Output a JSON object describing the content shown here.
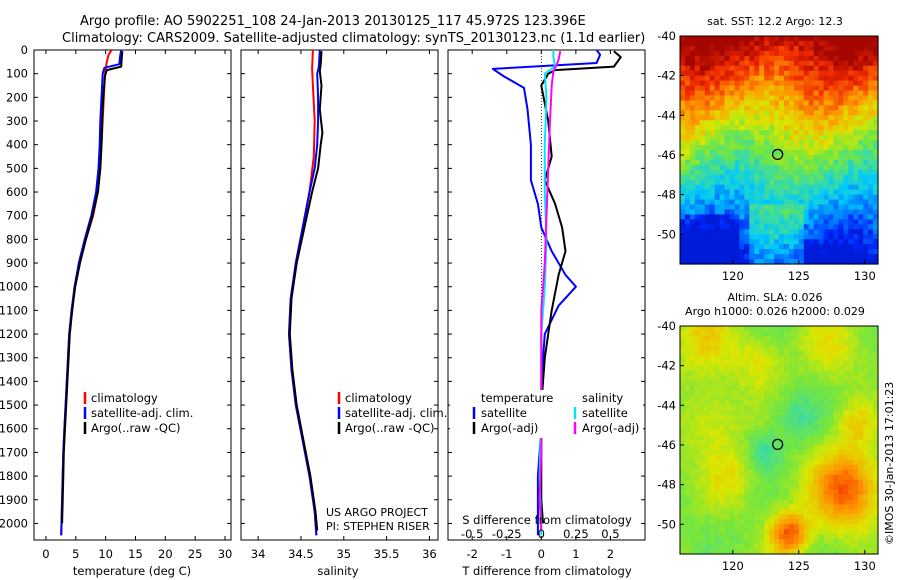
{
  "header": {
    "line1": "Argo profile: AO 5902251_108 24-Jan-2013 20130125_117 45.972S 123.396E",
    "line2": "Climatology: CARS2009. Satellite-adjusted climatology: synTS_20130123.nc (1.1d earlier)"
  },
  "colors": {
    "climatology": "#ff0000",
    "satellite": "#0000ff",
    "argo": "#000000",
    "sal_sat": "#00e5ff",
    "sal_argo": "#ff00ff"
  },
  "depth_axis": {
    "ticks": [
      0,
      100,
      200,
      300,
      400,
      500,
      600,
      700,
      800,
      900,
      1000,
      1100,
      1200,
      1300,
      1400,
      1500,
      1600,
      1700,
      1800,
      1900,
      2000
    ],
    "ylim": [
      0,
      2070
    ]
  },
  "chart_data": [
    {
      "id": "temperature",
      "type": "line",
      "xlabel": "temperature (deg C)",
      "xlim": [
        -2,
        31
      ],
      "xticks": [
        0,
        5,
        10,
        15,
        20,
        25,
        30
      ],
      "ylim": [
        0,
        2070
      ],
      "legend": [
        "climatology",
        "satellite-adj. clim.",
        "Argo(..raw -QC)"
      ],
      "series": [
        {
          "name": "climatology",
          "color": "#ff0000",
          "points": [
            [
              11,
              0
            ],
            [
              10.5,
              20
            ],
            [
              10.2,
              50
            ],
            [
              9.9,
              100
            ],
            [
              9.7,
              200
            ],
            [
              9.5,
              300
            ],
            [
              9.3,
              400
            ],
            [
              9.1,
              500
            ],
            [
              8.7,
              600
            ],
            [
              7.9,
              700
            ],
            [
              6.7,
              800
            ],
            [
              5.6,
              900
            ],
            [
              4.8,
              1000
            ],
            [
              4.3,
              1100
            ],
            [
              3.9,
              1200
            ],
            [
              3.7,
              1300
            ],
            [
              3.5,
              1400
            ],
            [
              3.3,
              1500
            ],
            [
              3.1,
              1600
            ],
            [
              2.9,
              1700
            ],
            [
              2.8,
              1800
            ],
            [
              2.7,
              1900
            ],
            [
              2.6,
              2000
            ],
            [
              2.55,
              2050
            ]
          ]
        },
        {
          "name": "satellite-adj. clim.",
          "color": "#0000ff",
          "points": [
            [
              12.6,
              0
            ],
            [
              12.4,
              30
            ],
            [
              12.3,
              60
            ],
            [
              9.8,
              75
            ],
            [
              9.5,
              100
            ],
            [
              9.3,
              200
            ],
            [
              9.1,
              300
            ],
            [
              9.0,
              400
            ],
            [
              8.8,
              500
            ],
            [
              8.4,
              600
            ],
            [
              7.6,
              700
            ],
            [
              6.5,
              800
            ],
            [
              5.5,
              900
            ],
            [
              4.8,
              1000
            ],
            [
              4.3,
              1100
            ],
            [
              3.9,
              1200
            ],
            [
              3.7,
              1300
            ],
            [
              3.5,
              1400
            ],
            [
              3.3,
              1500
            ],
            [
              3.1,
              1600
            ],
            [
              2.9,
              1700
            ],
            [
              2.8,
              1800
            ],
            [
              2.7,
              1900
            ],
            [
              2.6,
              2000
            ],
            [
              2.55,
              2050
            ]
          ]
        },
        {
          "name": "Argo(..raw -QC)",
          "color": "#000000",
          "points": [
            [
              12.8,
              5
            ],
            [
              12.7,
              30
            ],
            [
              12.6,
              70
            ],
            [
              10.2,
              85
            ],
            [
              9.9,
              110
            ],
            [
              9.6,
              200
            ],
            [
              9.4,
              300
            ],
            [
              9.3,
              400
            ],
            [
              9.1,
              500
            ],
            [
              8.7,
              600
            ],
            [
              7.8,
              700
            ],
            [
              6.7,
              800
            ],
            [
              5.7,
              900
            ],
            [
              4.9,
              1000
            ],
            [
              4.4,
              1100
            ],
            [
              4.0,
              1200
            ],
            [
              3.8,
              1300
            ],
            [
              3.6,
              1400
            ],
            [
              3.4,
              1500
            ],
            [
              3.2,
              1600
            ],
            [
              3.0,
              1700
            ],
            [
              2.9,
              1800
            ],
            [
              2.8,
              1900
            ],
            [
              2.7,
              2000
            ]
          ]
        }
      ]
    },
    {
      "id": "salinity",
      "type": "line",
      "xlabel": "salinity",
      "xlim": [
        33.8,
        36.1
      ],
      "xticks": [
        34,
        34.5,
        35,
        35.5,
        36
      ],
      "ylim": [
        0,
        2070
      ],
      "legend": [
        "climatology",
        "satellite-adj. clim.",
        "Argo(..raw -QC)"
      ],
      "series": [
        {
          "name": "climatology",
          "color": "#ff0000",
          "points": [
            [
              34.64,
              0
            ],
            [
              34.63,
              80
            ],
            [
              34.64,
              150
            ],
            [
              34.66,
              300
            ],
            [
              34.65,
              450
            ],
            [
              34.6,
              600
            ],
            [
              34.52,
              750
            ],
            [
              34.44,
              900
            ],
            [
              34.38,
              1050
            ],
            [
              34.36,
              1200
            ],
            [
              34.39,
              1350
            ],
            [
              34.44,
              1500
            ],
            [
              34.52,
              1650
            ],
            [
              34.6,
              1800
            ],
            [
              34.66,
              1950
            ],
            [
              34.68,
              2050
            ]
          ]
        },
        {
          "name": "satellite-adj. clim.",
          "color": "#0000ff",
          "points": [
            [
              34.72,
              0
            ],
            [
              34.71,
              70
            ],
            [
              34.69,
              100
            ],
            [
              34.7,
              200
            ],
            [
              34.7,
              300
            ],
            [
              34.69,
              400
            ],
            [
              34.66,
              500
            ],
            [
              34.6,
              600
            ],
            [
              34.52,
              750
            ],
            [
              34.44,
              900
            ],
            [
              34.38,
              1050
            ],
            [
              34.36,
              1200
            ],
            [
              34.39,
              1350
            ],
            [
              34.44,
              1500
            ],
            [
              34.52,
              1650
            ],
            [
              34.6,
              1800
            ],
            [
              34.66,
              1950
            ],
            [
              34.68,
              2050
            ]
          ]
        },
        {
          "name": "Argo(..raw -QC)",
          "color": "#000000",
          "points": [
            [
              34.74,
              5
            ],
            [
              34.73,
              60
            ],
            [
              34.72,
              90
            ],
            [
              34.74,
              150
            ],
            [
              34.72,
              250
            ],
            [
              34.75,
              350
            ],
            [
              34.73,
              400
            ],
            [
              34.7,
              500
            ],
            [
              34.63,
              600
            ],
            [
              34.54,
              750
            ],
            [
              34.45,
              900
            ],
            [
              34.39,
              1050
            ],
            [
              34.37,
              1200
            ],
            [
              34.4,
              1350
            ],
            [
              34.45,
              1500
            ],
            [
              34.53,
              1650
            ],
            [
              34.61,
              1800
            ],
            [
              34.67,
              1950
            ],
            [
              34.69,
              2030
            ]
          ]
        }
      ],
      "annotation": [
        "US ARGO PROJECT",
        "PI: STEPHEN RISER"
      ]
    },
    {
      "id": "difference",
      "type": "line",
      "xlabel": "T difference from climatology",
      "xlabel_top": "S difference from climatology",
      "xlim": [
        -2.7,
        3.0
      ],
      "xticks": [
        -2,
        -1,
        0,
        1,
        2
      ],
      "xticks_top": [
        -0.5,
        -0.25,
        0,
        0.25,
        0.5
      ],
      "ylim": [
        0,
        2070
      ],
      "legend_temperature": {
        "title": "temperature",
        "items": [
          "satellite",
          "Argo(-adj)"
        ]
      },
      "legend_salinity": {
        "title": "salinity",
        "items": [
          "satellite",
          "Argo(-adj)"
        ]
      },
      "series": [
        {
          "name": "temperature satellite",
          "color": "#0000ff",
          "points": [
            [
              1.6,
              0
            ],
            [
              1.7,
              20
            ],
            [
              1.6,
              55
            ],
            [
              -1.4,
              80
            ],
            [
              -1.1,
              110
            ],
            [
              -0.5,
              160
            ],
            [
              -0.4,
              250
            ],
            [
              -0.3,
              400
            ],
            [
              -0.3,
              550
            ],
            [
              -0.1,
              650
            ],
            [
              0,
              750
            ],
            [
              0.3,
              850
            ],
            [
              0.7,
              950
            ],
            [
              1.0,
              1000
            ],
            [
              0.5,
              1080
            ],
            [
              0.1,
              1200
            ],
            [
              0,
              1400
            ],
            [
              0,
              1600
            ],
            [
              -0.1,
              1800
            ],
            [
              -0.1,
              2000
            ],
            [
              -0.1,
              2050
            ]
          ]
        },
        {
          "name": "temperature Argo(-adj)",
          "color": "#000000",
          "points": [
            [
              2.1,
              5
            ],
            [
              2.3,
              30
            ],
            [
              2.1,
              70
            ],
            [
              0.4,
              85
            ],
            [
              0.2,
              100
            ],
            [
              0,
              150
            ],
            [
              0.2,
              300
            ],
            [
              0.3,
              450
            ],
            [
              0.1,
              550
            ],
            [
              0.4,
              650
            ],
            [
              0.6,
              750
            ],
            [
              0.7,
              850
            ],
            [
              0.5,
              950
            ],
            [
              0.3,
              1100
            ],
            [
              0.1,
              1300
            ],
            [
              0,
              1500
            ],
            [
              0,
              1700
            ],
            [
              0,
              1900
            ],
            [
              0.05,
              2000
            ]
          ]
        },
        {
          "name": "salinity satellite",
          "color": "#00e5ff",
          "points": [
            [
              0.35,
              0
            ],
            [
              0.35,
              30
            ],
            [
              0.4,
              70
            ],
            [
              0.1,
              100
            ],
            [
              0.15,
              200
            ],
            [
              0.1,
              400
            ],
            [
              0.1,
              600
            ],
            [
              0.15,
              800
            ],
            [
              0.1,
              1000
            ],
            [
              0,
              1200
            ],
            [
              0,
              1500
            ],
            [
              -0.05,
              1800
            ],
            [
              0,
              2050
            ]
          ]
        },
        {
          "name": "salinity Argo(-adj)",
          "color": "#ff00ff",
          "points": [
            [
              0.55,
              5
            ],
            [
              0.5,
              40
            ],
            [
              0.45,
              60
            ],
            [
              0.35,
              90
            ],
            [
              0.3,
              150
            ],
            [
              0.25,
              300
            ],
            [
              0.2,
              500
            ],
            [
              0.15,
              700
            ],
            [
              0.1,
              900
            ],
            [
              0,
              1100
            ],
            [
              0,
              1400
            ],
            [
              0,
              1700
            ],
            [
              -0.05,
              1900
            ],
            [
              0,
              2030
            ]
          ]
        }
      ]
    },
    {
      "id": "sst_map",
      "type": "heatmap",
      "title": "sat. SST: 12.2  Argo: 12.3",
      "xlim": [
        116,
        131
      ],
      "ylim": [
        -51.5,
        -40
      ],
      "xticks": [
        120,
        125,
        130
      ],
      "yticks": [
        -40,
        -42,
        -44,
        -46,
        -48,
        -50
      ],
      "marker": {
        "lon": 123.396,
        "lat": -45.972
      }
    },
    {
      "id": "sla_map",
      "type": "heatmap",
      "title": [
        "Altim. SLA: 0.026",
        "Argo h1000: 0.026 h2000: 0.029"
      ],
      "xlim": [
        116,
        131
      ],
      "ylim": [
        -51.5,
        -40
      ],
      "xticks": [
        120,
        125,
        130
      ],
      "yticks": [
        -40,
        -42,
        -44,
        -46,
        -48,
        -50
      ],
      "marker": {
        "lon": 123.396,
        "lat": -45.972
      },
      "side_label": "©IMOS 30-Jan-2013 17:01:23"
    }
  ]
}
